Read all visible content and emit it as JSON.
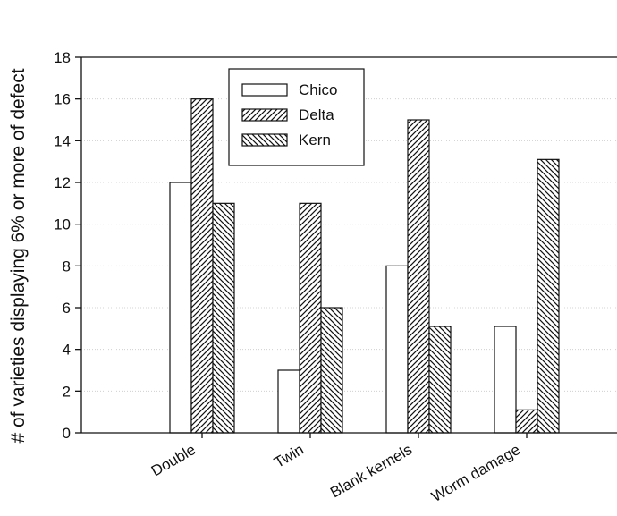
{
  "chart_data": {
    "type": "bar",
    "categories": [
      "Double",
      "Twin",
      "Blank kernels",
      "Worm damage"
    ],
    "series": [
      {
        "name": "Chico",
        "values": [
          12,
          3,
          8,
          5.1
        ],
        "pattern": "none"
      },
      {
        "name": "Delta",
        "values": [
          16,
          11,
          15,
          1.1
        ],
        "pattern": "diag-forward"
      },
      {
        "name": "Kern",
        "values": [
          11,
          6,
          5.1,
          13.1
        ],
        "pattern": "diag-backward"
      }
    ],
    "ylabel": "# of varieties displaying 6% or more of defect",
    "xlabel": "",
    "title": "",
    "ylim": [
      0,
      18
    ],
    "yticks": [
      0,
      2,
      4,
      6,
      8,
      10,
      12,
      14,
      16,
      18
    ],
    "grid": "horizontal dotted",
    "legend": "top-center"
  }
}
